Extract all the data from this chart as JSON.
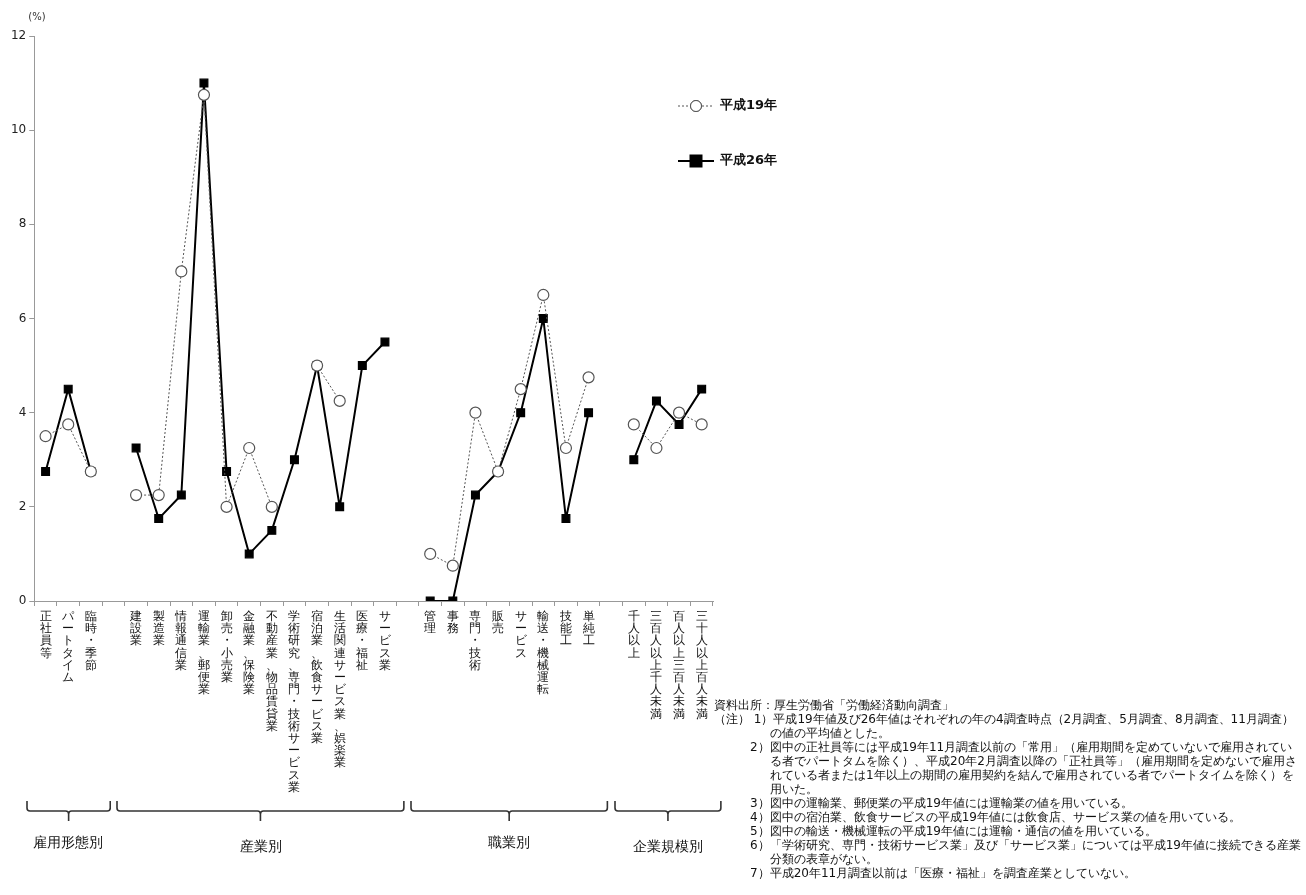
{
  "chart_data": {
    "type": "line",
    "ylabel": "(%)",
    "ylim": [
      0,
      12
    ],
    "yticks": [
      0,
      2,
      4,
      6,
      8,
      10,
      12
    ],
    "grid": false,
    "legend": "top right",
    "categories": [
      "正社員等",
      "パートタイム",
      "臨時・季節",
      null,
      "建設業",
      "製造業",
      "情報通信業",
      "運輸業、郵便業",
      "卸売・小売業",
      "金融業、保険業",
      "不動産業、物品賃貸業",
      "学術研究、専門・技術サービス業",
      "宿泊業、飲食サービス業",
      "生活関連サービス業、娯楽業",
      "医療・福祉",
      "サービス業",
      null,
      "管理",
      "事務",
      "専門・技術",
      "販売",
      "サービス",
      "輸送・機械運転",
      "技能工",
      "単純工",
      null,
      "千人以上",
      "三百人以上千人未満",
      "百人以上三百人未満",
      "三十人以上百人未満"
    ],
    "series": [
      {
        "name": "平成19年",
        "color": "#555555",
        "marker": "circle",
        "line_style": "dotted",
        "values": [
          3.5,
          3.75,
          2.75,
          null,
          2.25,
          2.25,
          7.0,
          10.75,
          2.0,
          3.25,
          2.0,
          null,
          5.0,
          4.25,
          null,
          null,
          null,
          1.0,
          0.75,
          4.0,
          2.75,
          4.5,
          6.5,
          3.25,
          4.75,
          null,
          3.75,
          3.25,
          4.0,
          3.75
        ]
      },
      {
        "name": "平成26年",
        "color": "#000000",
        "marker": "square",
        "line_style": "solid",
        "values": [
          2.75,
          4.5,
          2.75,
          null,
          3.25,
          1.75,
          2.25,
          11.0,
          2.75,
          1.0,
          1.5,
          3.0,
          5.0,
          2.0,
          5.0,
          5.5,
          null,
          0,
          0,
          2.25,
          2.75,
          4.0,
          6.0,
          1.75,
          4.0,
          null,
          3.0,
          4.25,
          3.75,
          4.5
        ]
      }
    ],
    "annotations": [
      "雇用形態別",
      "産業別",
      "職業別",
      "企業規模別",
      "資料出所：厚生労働省「労働経済動向調査」",
      "（注） 1）平成19年値及び26年値はそれぞれの年の4調査時点（2月調査、5月調査、8月調査、11月調査）の値の平均値とした。",
      "2）図中の正社員等には平成19年11月調査以前の「常用」（雇用期間を定めていないで雇用されている者でパートタムを除く）、平成20年2月調査以降の「正社員等」（雇用期間を定めないで雇用されている者または1年以上の期間の雇用契約を結んで雇用されている者でパートタイムを除く）を用いた。",
      "3）図中の運輸業、郵便業の平成19年値には運輸業の値を用いている。",
      "4）図中の宿泊業、飲食サービスの平成19年値には飲食店、サービス業の値を用いている。",
      "5）図中の輸送・機械運転の平成19年値には運輸・通信の値を用いている。",
      "6）「学術研究、専門・技術サービス業」及び「サービス業」については平成19年値に接続できる産業分類の表章がない。",
      "7）平成20年11月調査以前は「医療・福祉」を調査産業としていない。"
    ]
  }
}
